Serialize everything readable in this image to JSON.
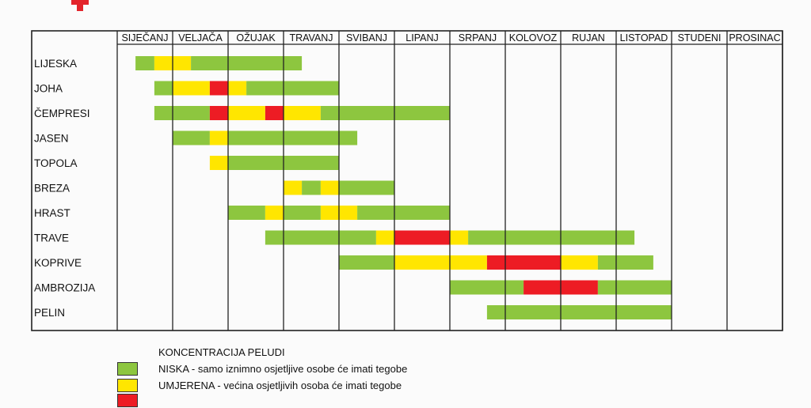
{
  "chart_data": {
    "type": "table",
    "title": "",
    "months": [
      "SIJEČANJ",
      "VELJAČA",
      "OŽUJAK",
      "TRAVANJ",
      "SVIBANJ",
      "LIPANJ",
      "SRPANJ",
      "KOLOVOZ",
      "RUJAN",
      "LISTOPAD",
      "STUDENI",
      "PROSINAC"
    ],
    "plants": [
      {
        "name": "LIJESKA",
        "segments": [
          {
            "start": 0.33,
            "end": 0.67,
            "level": "low"
          },
          {
            "start": 0.67,
            "end": 1.33,
            "level": "moderate"
          },
          {
            "start": 1.33,
            "end": 3.33,
            "level": "low"
          }
        ]
      },
      {
        "name": "JOHA",
        "segments": [
          {
            "start": 0.67,
            "end": 1.0,
            "level": "low"
          },
          {
            "start": 1.0,
            "end": 1.67,
            "level": "moderate"
          },
          {
            "start": 1.67,
            "end": 2.0,
            "level": "high"
          },
          {
            "start": 2.0,
            "end": 2.33,
            "level": "moderate"
          },
          {
            "start": 2.33,
            "end": 4.0,
            "level": "low"
          }
        ]
      },
      {
        "name": "ČEMPRESI",
        "segments": [
          {
            "start": 0.67,
            "end": 1.67,
            "level": "low"
          },
          {
            "start": 1.67,
            "end": 2.0,
            "level": "high"
          },
          {
            "start": 2.0,
            "end": 2.67,
            "level": "moderate"
          },
          {
            "start": 2.67,
            "end": 3.0,
            "level": "high"
          },
          {
            "start": 3.0,
            "end": 3.67,
            "level": "moderate"
          },
          {
            "start": 3.67,
            "end": 6.0,
            "level": "low"
          }
        ]
      },
      {
        "name": "JASEN",
        "segments": [
          {
            "start": 1.0,
            "end": 1.67,
            "level": "low"
          },
          {
            "start": 1.67,
            "end": 2.0,
            "level": "moderate"
          },
          {
            "start": 2.0,
            "end": 4.33,
            "level": "low"
          }
        ]
      },
      {
        "name": "TOPOLA",
        "segments": [
          {
            "start": 1.67,
            "end": 2.0,
            "level": "moderate"
          },
          {
            "start": 2.0,
            "end": 4.0,
            "level": "low"
          }
        ]
      },
      {
        "name": "BREZA",
        "segments": [
          {
            "start": 3.0,
            "end": 3.33,
            "level": "moderate"
          },
          {
            "start": 3.33,
            "end": 3.67,
            "level": "low"
          },
          {
            "start": 3.67,
            "end": 4.0,
            "level": "moderate"
          },
          {
            "start": 4.0,
            "end": 5.0,
            "level": "low"
          }
        ]
      },
      {
        "name": "HRAST",
        "segments": [
          {
            "start": 2.0,
            "end": 2.67,
            "level": "low"
          },
          {
            "start": 2.67,
            "end": 3.0,
            "level": "moderate"
          },
          {
            "start": 3.0,
            "end": 3.67,
            "level": "low"
          },
          {
            "start": 3.67,
            "end": 4.33,
            "level": "moderate"
          },
          {
            "start": 4.33,
            "end": 6.0,
            "level": "low"
          }
        ]
      },
      {
        "name": "TRAVE",
        "segments": [
          {
            "start": 2.67,
            "end": 4.67,
            "level": "low"
          },
          {
            "start": 4.67,
            "end": 5.0,
            "level": "moderate"
          },
          {
            "start": 5.0,
            "end": 6.0,
            "level": "high"
          },
          {
            "start": 6.0,
            "end": 6.33,
            "level": "moderate"
          },
          {
            "start": 6.33,
            "end": 9.33,
            "level": "low"
          }
        ]
      },
      {
        "name": "KOPRIVE",
        "segments": [
          {
            "start": 4.0,
            "end": 5.0,
            "level": "low"
          },
          {
            "start": 5.0,
            "end": 6.67,
            "level": "moderate"
          },
          {
            "start": 6.67,
            "end": 8.0,
            "level": "high"
          },
          {
            "start": 8.0,
            "end": 8.67,
            "level": "moderate"
          },
          {
            "start": 8.67,
            "end": 9.67,
            "level": "low"
          }
        ]
      },
      {
        "name": "AMBROZIJA",
        "segments": [
          {
            "start": 6.0,
            "end": 7.33,
            "level": "low"
          },
          {
            "start": 7.33,
            "end": 8.67,
            "level": "high"
          },
          {
            "start": 8.67,
            "end": 10.0,
            "level": "low"
          }
        ]
      },
      {
        "name": "PELIN",
        "segments": [
          {
            "start": 6.67,
            "end": 10.0,
            "level": "low"
          }
        ]
      }
    ],
    "colors": {
      "low": "#8dc63f",
      "moderate": "#ffe600",
      "high": "#ed1c24",
      "grid": "#222222",
      "cross": "#e3242b"
    },
    "legend": {
      "title": "KONCENTRACIJA PELUDI",
      "items": [
        {
          "level": "low",
          "label": "NISKA - samo iznimno osjetljive osobe će imati tegobe"
        },
        {
          "level": "moderate",
          "label": "UMJERENA - većina osjetljivih osoba će imati tegobe"
        },
        {
          "level": "high",
          "label": ""
        }
      ]
    }
  }
}
